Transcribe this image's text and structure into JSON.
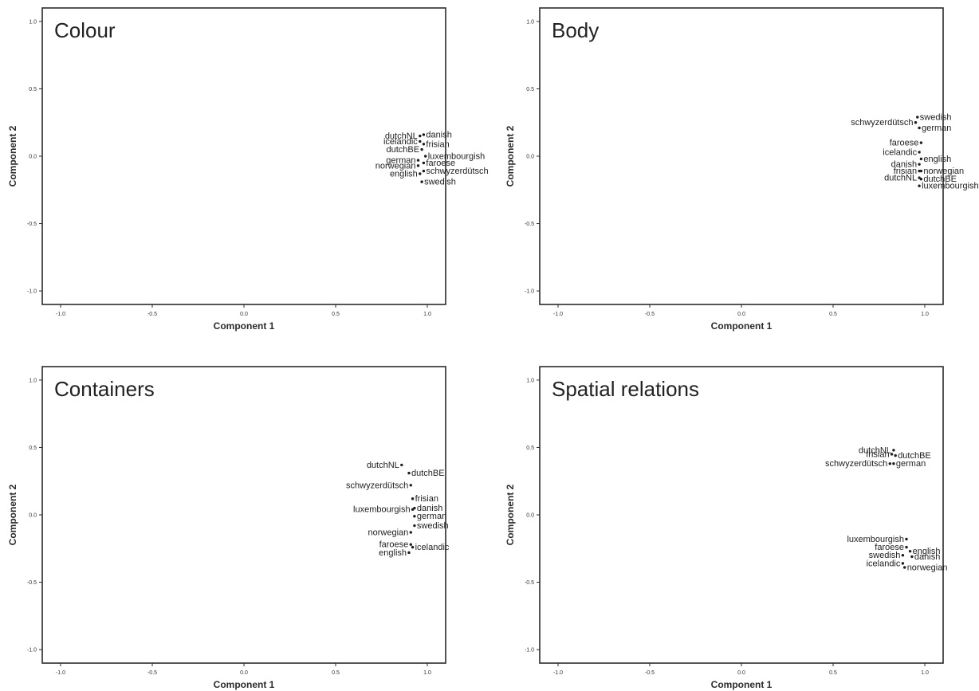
{
  "chart_data": [
    {
      "type": "scatter",
      "title": "Colour",
      "xlabel": "Component 1",
      "ylabel": "Component 2",
      "xlim": [
        -1.1,
        1.1
      ],
      "ylim": [
        -1.1,
        1.1
      ],
      "xticks": [
        "-1.0",
        "-0.5",
        "0.0",
        "0.5",
        "1.0"
      ],
      "yticks": [
        "1.0",
        "0.5",
        "0.0",
        "-0.5",
        "-1.0"
      ],
      "grid": false,
      "points": [
        {
          "label": "danish",
          "x": 0.98,
          "y": 0.16
        },
        {
          "label": "dutchNL",
          "x": 0.96,
          "y": 0.15
        },
        {
          "label": "icelandic",
          "x": 0.96,
          "y": 0.11
        },
        {
          "label": "frisian",
          "x": 0.98,
          "y": 0.09
        },
        {
          "label": "dutchBE",
          "x": 0.97,
          "y": 0.05
        },
        {
          "label": "luxembourgish",
          "x": 0.99,
          "y": 0.0
        },
        {
          "label": "german",
          "x": 0.95,
          "y": -0.03
        },
        {
          "label": "faroese",
          "x": 0.98,
          "y": -0.05
        },
        {
          "label": "norwegian",
          "x": 0.95,
          "y": -0.07
        },
        {
          "label": "schwyzerdütsch",
          "x": 0.98,
          "y": -0.11
        },
        {
          "label": "english",
          "x": 0.96,
          "y": -0.13
        },
        {
          "label": "swedish",
          "x": 0.97,
          "y": -0.19
        }
      ]
    },
    {
      "type": "scatter",
      "title": "Body",
      "xlabel": "Component 1",
      "ylabel": "Component 2",
      "xlim": [
        -1.1,
        1.1
      ],
      "ylim": [
        -1.1,
        1.1
      ],
      "xticks": [
        "-1.0",
        "-0.5",
        "0.0",
        "0.5",
        "1.0"
      ],
      "yticks": [
        "1.0",
        "0.5",
        "0.0",
        "-0.5",
        "-1.0"
      ],
      "grid": false,
      "points": [
        {
          "label": "swedish",
          "x": 0.96,
          "y": 0.29
        },
        {
          "label": "schwyzerdütsch",
          "x": 0.95,
          "y": 0.25
        },
        {
          "label": "german",
          "x": 0.97,
          "y": 0.21
        },
        {
          "label": "faroese",
          "x": 0.98,
          "y": 0.1
        },
        {
          "label": "icelandic",
          "x": 0.97,
          "y": 0.03
        },
        {
          "label": "english",
          "x": 0.98,
          "y": -0.02
        },
        {
          "label": "danish",
          "x": 0.97,
          "y": -0.06
        },
        {
          "label": "frisian",
          "x": 0.97,
          "y": -0.11
        },
        {
          "label": "norwegian",
          "x": 0.98,
          "y": -0.11
        },
        {
          "label": "dutchNL",
          "x": 0.97,
          "y": -0.16
        },
        {
          "label": "dutchBE",
          "x": 0.98,
          "y": -0.17
        },
        {
          "label": "luxembourgish",
          "x": 0.97,
          "y": -0.22
        }
      ]
    },
    {
      "type": "scatter",
      "title": "Containers",
      "xlabel": "Component 1",
      "ylabel": "Component 2",
      "xlim": [
        -1.1,
        1.1
      ],
      "ylim": [
        -1.1,
        1.1
      ],
      "xticks": [
        "-1.0",
        "-0.5",
        "0.0",
        "0.5",
        "1.0"
      ],
      "yticks": [
        "1.0",
        "0.5",
        "0.0",
        "-0.5",
        "-1.0"
      ],
      "grid": false,
      "points": [
        {
          "label": "dutchNL",
          "x": 0.86,
          "y": 0.37
        },
        {
          "label": "dutchBE",
          "x": 0.9,
          "y": 0.31
        },
        {
          "label": "schwyzerdütsch",
          "x": 0.91,
          "y": 0.22
        },
        {
          "label": "frisian",
          "x": 0.92,
          "y": 0.12
        },
        {
          "label": "luxembourgish",
          "x": 0.92,
          "y": 0.04
        },
        {
          "label": "danish",
          "x": 0.93,
          "y": 0.05
        },
        {
          "label": "german",
          "x": 0.93,
          "y": -0.01
        },
        {
          "label": "swedish",
          "x": 0.93,
          "y": -0.08
        },
        {
          "label": "norwegian",
          "x": 0.91,
          "y": -0.13
        },
        {
          "label": "faroese",
          "x": 0.91,
          "y": -0.22
        },
        {
          "label": "icelandic",
          "x": 0.92,
          "y": -0.24
        },
        {
          "label": "english",
          "x": 0.9,
          "y": -0.28
        }
      ]
    },
    {
      "type": "scatter",
      "title": "Spatial relations",
      "xlabel": "Component 1",
      "ylabel": "Component 2",
      "xlim": [
        -1.1,
        1.1
      ],
      "ylim": [
        -1.1,
        1.1
      ],
      "xticks": [
        "-1.0",
        "-0.5",
        "0.0",
        "0.5",
        "1.0"
      ],
      "yticks": [
        "1.0",
        "0.5",
        "0.0",
        "-0.5",
        "-1.0"
      ],
      "grid": false,
      "points": [
        {
          "label": "dutchNL",
          "x": 0.83,
          "y": 0.48
        },
        {
          "label": "frisian",
          "x": 0.82,
          "y": 0.45
        },
        {
          "label": "dutchBE",
          "x": 0.84,
          "y": 0.44
        },
        {
          "label": "schwyzerdütsch",
          "x": 0.81,
          "y": 0.38
        },
        {
          "label": "german",
          "x": 0.83,
          "y": 0.38
        },
        {
          "label": "luxembourgish",
          "x": 0.9,
          "y": -0.18
        },
        {
          "label": "faroese",
          "x": 0.9,
          "y": -0.24
        },
        {
          "label": "english",
          "x": 0.92,
          "y": -0.27
        },
        {
          "label": "swedish",
          "x": 0.88,
          "y": -0.3
        },
        {
          "label": "danish",
          "x": 0.93,
          "y": -0.31
        },
        {
          "label": "icelandic",
          "x": 0.88,
          "y": -0.36
        },
        {
          "label": "norwegian",
          "x": 0.89,
          "y": -0.39
        }
      ]
    }
  ]
}
